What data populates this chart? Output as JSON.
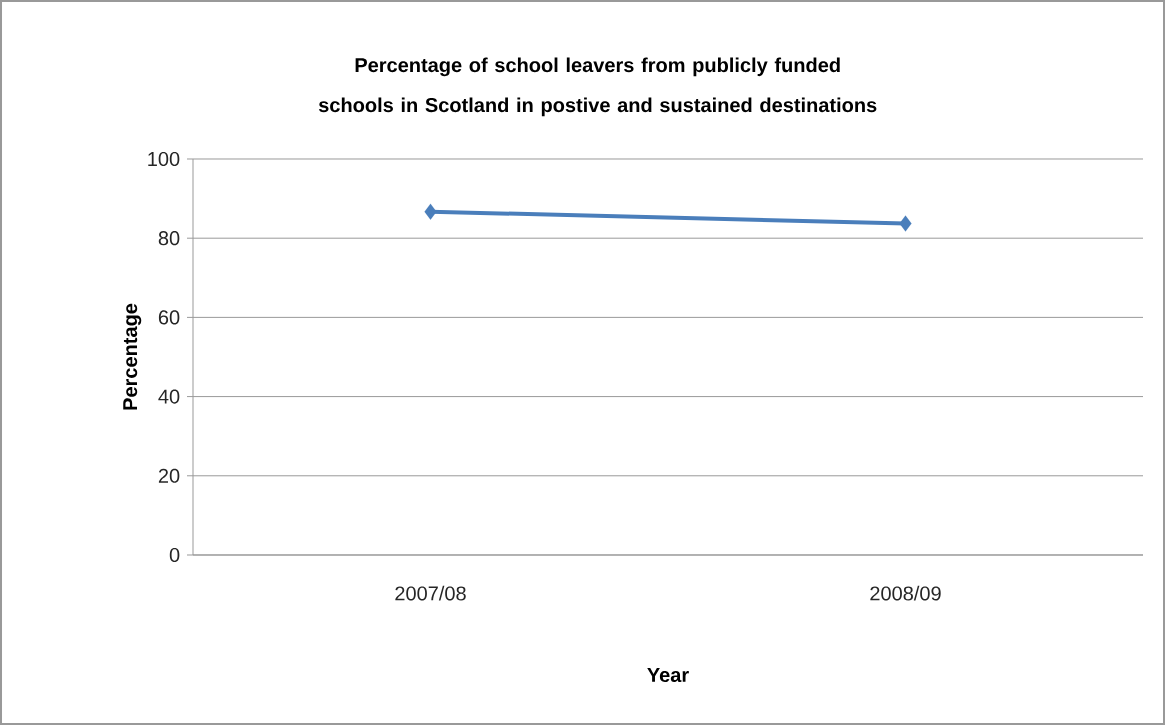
{
  "chart_data": {
    "type": "line",
    "title": "Percentage of school leavers from publicly funded schools in Scotland in postive and sustained destinations",
    "xlabel": "Year",
    "ylabel": "Percentage",
    "categories": [
      "2007/08",
      "2008/09"
    ],
    "series": [
      {
        "color": "#4a7ebb",
        "values": [
          86.7,
          83.7
        ]
      }
    ],
    "ylim": [
      0,
      100
    ],
    "yticks": [
      0,
      20,
      40,
      60,
      80,
      100
    ],
    "grid": "y",
    "marker": "diamond",
    "line_style": "solid"
  }
}
